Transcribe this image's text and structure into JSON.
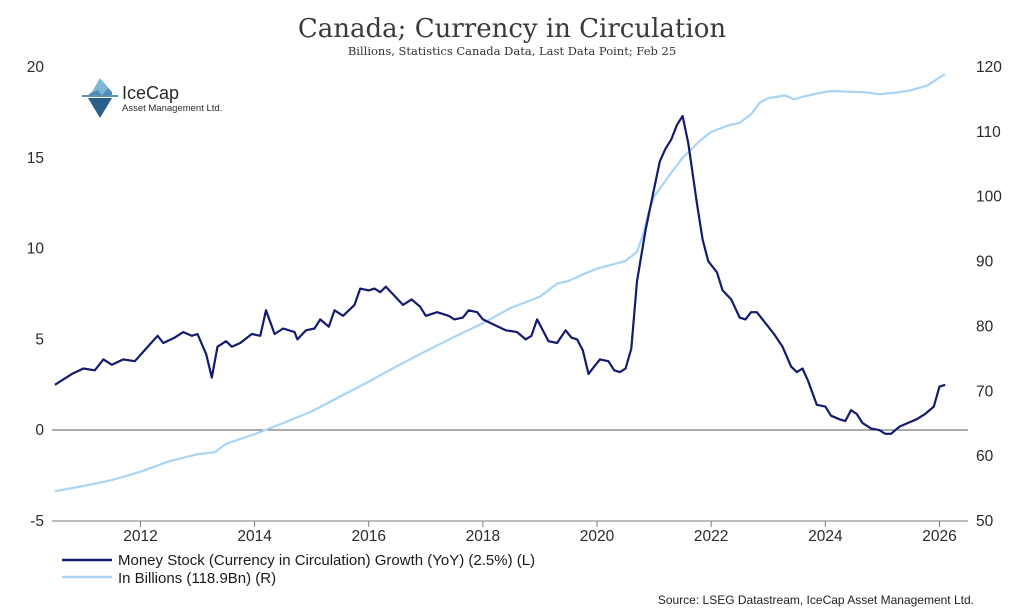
{
  "chart_data": {
    "type": "line",
    "title": "Canada; Currency in Circulation",
    "subtitle": "Billions, Statistics Canada Data, Last Data Point; Feb 25",
    "x_axis": {
      "range": [
        2010.45,
        2026.5
      ],
      "ticks": [
        "2012",
        "2014",
        "2016",
        "2018",
        "2020",
        "2022",
        "2024",
        "2026"
      ]
    },
    "y_left": {
      "range": [
        -5,
        20
      ],
      "ticks": [
        "20",
        "15",
        "10",
        "5",
        "0",
        "-5"
      ]
    },
    "y_right": {
      "range": [
        50,
        120
      ],
      "ticks": [
        "120",
        "110",
        "100",
        "90",
        "80",
        "70",
        "60",
        "50"
      ]
    },
    "series": [
      {
        "name": "Money Stock (Currency in Circulation) Growth (YoY) (2.5%) (L)",
        "axis": "left",
        "color": "#141a6e",
        "points": [
          [
            2010.5,
            2.5
          ],
          [
            2010.8,
            3.1
          ],
          [
            2011.0,
            3.4
          ],
          [
            2011.2,
            3.3
          ],
          [
            2011.35,
            3.9
          ],
          [
            2011.5,
            3.6
          ],
          [
            2011.7,
            3.9
          ],
          [
            2011.9,
            3.8
          ],
          [
            2012.1,
            4.5
          ],
          [
            2012.3,
            5.2
          ],
          [
            2012.4,
            4.8
          ],
          [
            2012.6,
            5.1
          ],
          [
            2012.75,
            5.4
          ],
          [
            2012.9,
            5.2
          ],
          [
            2013.0,
            5.3
          ],
          [
            2013.15,
            4.2
          ],
          [
            2013.25,
            2.9
          ],
          [
            2013.35,
            4.6
          ],
          [
            2013.5,
            4.9
          ],
          [
            2013.6,
            4.6
          ],
          [
            2013.75,
            4.8
          ],
          [
            2013.95,
            5.3
          ],
          [
            2014.1,
            5.2
          ],
          [
            2014.2,
            6.6
          ],
          [
            2014.35,
            5.3
          ],
          [
            2014.5,
            5.6
          ],
          [
            2014.7,
            5.4
          ],
          [
            2014.75,
            5.0
          ],
          [
            2014.9,
            5.5
          ],
          [
            2015.05,
            5.6
          ],
          [
            2015.15,
            6.1
          ],
          [
            2015.3,
            5.7
          ],
          [
            2015.4,
            6.6
          ],
          [
            2015.55,
            6.3
          ],
          [
            2015.75,
            6.9
          ],
          [
            2015.85,
            7.8
          ],
          [
            2016.0,
            7.7
          ],
          [
            2016.1,
            7.8
          ],
          [
            2016.2,
            7.6
          ],
          [
            2016.3,
            7.9
          ],
          [
            2016.45,
            7.4
          ],
          [
            2016.6,
            6.9
          ],
          [
            2016.75,
            7.2
          ],
          [
            2016.9,
            6.8
          ],
          [
            2017.0,
            6.3
          ],
          [
            2017.2,
            6.5
          ],
          [
            2017.4,
            6.3
          ],
          [
            2017.5,
            6.1
          ],
          [
            2017.65,
            6.2
          ],
          [
            2017.75,
            6.6
          ],
          [
            2017.9,
            6.5
          ],
          [
            2018.0,
            6.1
          ],
          [
            2018.2,
            5.8
          ],
          [
            2018.4,
            5.5
          ],
          [
            2018.6,
            5.4
          ],
          [
            2018.75,
            5.0
          ],
          [
            2018.85,
            5.2
          ],
          [
            2018.95,
            6.1
          ],
          [
            2019.05,
            5.5
          ],
          [
            2019.15,
            4.9
          ],
          [
            2019.3,
            4.8
          ],
          [
            2019.45,
            5.5
          ],
          [
            2019.55,
            5.1
          ],
          [
            2019.65,
            5.0
          ],
          [
            2019.75,
            4.4
          ],
          [
            2019.85,
            3.1
          ],
          [
            2019.95,
            3.5
          ],
          [
            2020.05,
            3.9
          ],
          [
            2020.2,
            3.8
          ],
          [
            2020.3,
            3.3
          ],
          [
            2020.4,
            3.2
          ],
          [
            2020.5,
            3.4
          ],
          [
            2020.6,
            4.5
          ],
          [
            2020.7,
            8.2
          ],
          [
            2020.85,
            11.0
          ],
          [
            2021.0,
            13.3
          ],
          [
            2021.1,
            14.8
          ],
          [
            2021.2,
            15.5
          ],
          [
            2021.3,
            16.0
          ],
          [
            2021.4,
            16.8
          ],
          [
            2021.5,
            17.3
          ],
          [
            2021.6,
            15.8
          ],
          [
            2021.75,
            12.5
          ],
          [
            2021.85,
            10.5
          ],
          [
            2021.95,
            9.3
          ],
          [
            2022.1,
            8.7
          ],
          [
            2022.2,
            7.7
          ],
          [
            2022.35,
            7.2
          ],
          [
            2022.5,
            6.2
          ],
          [
            2022.6,
            6.1
          ],
          [
            2022.7,
            6.5
          ],
          [
            2022.8,
            6.5
          ],
          [
            2022.95,
            5.9
          ],
          [
            2023.1,
            5.3
          ],
          [
            2023.25,
            4.6
          ],
          [
            2023.4,
            3.5
          ],
          [
            2023.5,
            3.2
          ],
          [
            2023.6,
            3.4
          ],
          [
            2023.7,
            2.7
          ],
          [
            2023.85,
            1.4
          ],
          [
            2024.0,
            1.3
          ],
          [
            2024.1,
            0.8
          ],
          [
            2024.25,
            0.6
          ],
          [
            2024.35,
            0.5
          ],
          [
            2024.45,
            1.1
          ],
          [
            2024.55,
            0.9
          ],
          [
            2024.65,
            0.4
          ],
          [
            2024.8,
            0.1
          ],
          [
            2024.95,
            0.0
          ],
          [
            2025.05,
            -0.2
          ],
          [
            2025.15,
            -0.2
          ],
          [
            2025.3,
            0.2
          ],
          [
            2025.45,
            0.4
          ],
          [
            2025.6,
            0.6
          ],
          [
            2025.75,
            0.9
          ],
          [
            2025.9,
            1.3
          ],
          [
            2026.0,
            2.4
          ],
          [
            2026.1,
            2.5
          ]
        ]
      },
      {
        "name": "In Billions (118.9Bn) (R)",
        "axis": "right",
        "color": "#a9d4f4",
        "points": [
          [
            2010.5,
            54.6
          ],
          [
            2011.0,
            55.4
          ],
          [
            2011.5,
            56.3
          ],
          [
            2012.0,
            57.6
          ],
          [
            2012.5,
            59.2
          ],
          [
            2013.0,
            60.3
          ],
          [
            2013.3,
            60.6
          ],
          [
            2013.5,
            61.9
          ],
          [
            2014.0,
            63.4
          ],
          [
            2014.5,
            65.1
          ],
          [
            2015.0,
            66.9
          ],
          [
            2015.5,
            69.2
          ],
          [
            2016.0,
            71.5
          ],
          [
            2016.5,
            73.9
          ],
          [
            2017.0,
            76.2
          ],
          [
            2017.5,
            78.4
          ],
          [
            2018.0,
            80.5
          ],
          [
            2018.5,
            82.9
          ],
          [
            2019.0,
            84.6
          ],
          [
            2019.3,
            86.6
          ],
          [
            2019.5,
            87.0
          ],
          [
            2019.8,
            88.2
          ],
          [
            2020.0,
            88.9
          ],
          [
            2020.5,
            90.1
          ],
          [
            2020.7,
            91.5
          ],
          [
            2020.8,
            94.0
          ],
          [
            2020.9,
            97.5
          ],
          [
            2021.0,
            100.0
          ],
          [
            2021.2,
            102.5
          ],
          [
            2021.5,
            106.0
          ],
          [
            2021.8,
            108.6
          ],
          [
            2022.0,
            110.0
          ],
          [
            2022.3,
            111.0
          ],
          [
            2022.5,
            111.4
          ],
          [
            2022.7,
            112.7
          ],
          [
            2022.85,
            114.5
          ],
          [
            2023.0,
            115.2
          ],
          [
            2023.3,
            115.6
          ],
          [
            2023.45,
            115.0
          ],
          [
            2023.6,
            115.4
          ],
          [
            2023.9,
            116.0
          ],
          [
            2024.1,
            116.3
          ],
          [
            2024.4,
            116.2
          ],
          [
            2024.7,
            116.1
          ],
          [
            2024.95,
            115.8
          ],
          [
            2025.2,
            116.0
          ],
          [
            2025.5,
            116.4
          ],
          [
            2025.8,
            117.2
          ],
          [
            2025.95,
            118.1
          ],
          [
            2026.1,
            118.9
          ]
        ]
      }
    ],
    "zero_line": true
  },
  "logo": {
    "name": "IceCap",
    "sub": "Asset Management Ltd."
  },
  "source": "Source: LSEG Datastream, IceCap Asset Management Ltd."
}
